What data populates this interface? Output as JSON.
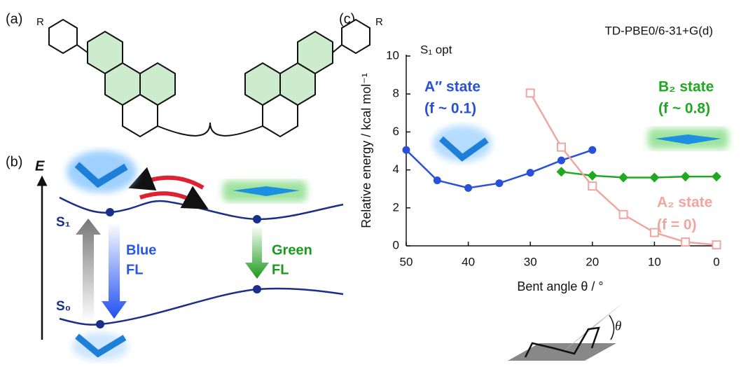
{
  "panels": {
    "a": "(a)",
    "b": "(b)",
    "c": "(c)"
  },
  "molecule": {
    "substituent": "R"
  },
  "diagram": {
    "energy_axis": "E",
    "s1": "S₁",
    "s0": "S₀",
    "blue_fl": [
      "Blue",
      "FL"
    ],
    "green_fl": [
      "Green",
      "FL"
    ]
  },
  "chart_data": {
    "type": "line",
    "title": "TD-PBE0/6-31+G(d)",
    "subtitle": "S₁ opt",
    "xlabel": "Bent angle θ / °",
    "ylabel": "Relative energy / kcal mol⁻¹",
    "xlim": [
      50,
      0
    ],
    "ylim": [
      0,
      10
    ],
    "xticks": [
      50,
      40,
      30,
      20,
      10,
      0
    ],
    "yticks": [
      0,
      2,
      4,
      6,
      8,
      10
    ],
    "series": [
      {
        "name": "A″ state",
        "color": "#2850d8",
        "marker": "circle",
        "x": [
          50,
          45,
          40,
          35,
          30,
          25,
          20
        ],
        "values": [
          5.05,
          3.45,
          3.05,
          3.3,
          3.85,
          4.5,
          5.05
        ]
      },
      {
        "name": "B₂ state",
        "color": "#20a820",
        "marker": "diamond",
        "x": [
          25,
          20,
          15,
          10,
          5,
          0
        ],
        "values": [
          3.9,
          3.7,
          3.6,
          3.6,
          3.65,
          3.65
        ]
      },
      {
        "name": "A₂ state",
        "color": "#f2a59e",
        "marker": "open-square",
        "x": [
          30,
          25,
          20,
          15,
          10,
          5,
          0
        ],
        "values": [
          8.05,
          5.2,
          3.15,
          1.65,
          0.7,
          0.2,
          0.05
        ]
      }
    ],
    "annotations": [
      {
        "text": "(f ~ 0.1)",
        "color": "#2850d8"
      },
      {
        "text": "(f ~ 0.8)",
        "color": "#20a820"
      },
      {
        "text": "(f = 0)",
        "color": "#f2a59e"
      }
    ],
    "angle_symbol": "θ"
  }
}
